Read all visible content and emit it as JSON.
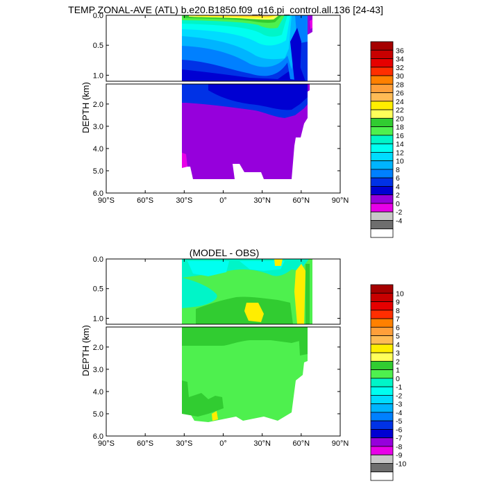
{
  "chart_data": [
    {
      "type": "heatmap",
      "panel": "top",
      "title": "TEMP ZONAL-AVE (ATL) b.e20.B1850.f09_g16.pi_control.all.136 [24-43]",
      "ylabel": "DEPTH (km)",
      "xlabel": "",
      "x_ticks": [
        "90°S",
        "60°S",
        "30°S",
        "0°",
        "30°N",
        "60°N",
        "90°N"
      ],
      "x_tick_values": [
        -90,
        -60,
        -30,
        0,
        30,
        60,
        90
      ],
      "xlim": [
        -90,
        90
      ],
      "y_ticks_upper": [
        "0.0",
        "0.5",
        "1.0"
      ],
      "y_tick_values_upper": [
        0.0,
        0.5,
        1.0
      ],
      "ylim_upper": [
        0.0,
        1.1
      ],
      "y_ticks_lower": [
        "2.0",
        "3.0",
        "4.0",
        "5.0",
        "6.0"
      ],
      "y_tick_values_lower": [
        2.0,
        3.0,
        4.0,
        5.0,
        6.0
      ],
      "ylim_lower": [
        1.1,
        6.0
      ],
      "colorbar_labels": [
        "36",
        "34",
        "32",
        "30",
        "28",
        "26",
        "24",
        "22",
        "20",
        "18",
        "16",
        "14",
        "12",
        "10",
        "8",
        "6",
        "4",
        "2",
        "0",
        "-2",
        "-4"
      ],
      "colorbar_colors": [
        "#a50000",
        "#c80000",
        "#e60000",
        "#ff2e00",
        "#ff8000",
        "#ff9f3a",
        "#ffbb55",
        "#ffee00",
        "#ffff5a",
        "#31cc31",
        "#4ef04e",
        "#00f5c8",
        "#00fff0",
        "#00dcff",
        "#00b4ff",
        "#0080ff",
        "#0032e6",
        "#0000d2",
        "#9600dc",
        "#e800e8",
        "#c8c8c8",
        "#6e6e6e",
        "#ffffff"
      ]
    },
    {
      "type": "heatmap",
      "panel": "bottom",
      "title": "(MODEL - OBS)",
      "ylabel": "DEPTH (km)",
      "xlabel": "",
      "x_ticks": [
        "90°S",
        "60°S",
        "30°S",
        "0°",
        "30°N",
        "60°N",
        "90°N"
      ],
      "x_tick_values": [
        -90,
        -60,
        -30,
        0,
        30,
        60,
        90
      ],
      "xlim": [
        -90,
        90
      ],
      "y_ticks_upper": [
        "0.0",
        "0.5",
        "1.0"
      ],
      "y_tick_values_upper": [
        0.0,
        0.5,
        1.0
      ],
      "ylim_upper": [
        0.0,
        1.1
      ],
      "y_ticks_lower": [
        "2.0",
        "3.0",
        "4.0",
        "5.0",
        "6.0"
      ],
      "y_tick_values_lower": [
        2.0,
        3.0,
        4.0,
        5.0,
        6.0
      ],
      "ylim_lower": [
        1.1,
        6.0
      ],
      "colorbar_labels": [
        "10",
        "9",
        "8",
        "7",
        "6",
        "5",
        "4",
        "3",
        "2",
        "1",
        "0",
        "-1",
        "-2",
        "-3",
        "-4",
        "-5",
        "-6",
        "-7",
        "-8",
        "-9",
        "-10"
      ],
      "colorbar_colors": [
        "#a50000",
        "#c80000",
        "#e60000",
        "#ff2e00",
        "#ff8000",
        "#ff9f3a",
        "#ffbb55",
        "#ffee00",
        "#ffff5a",
        "#31cc31",
        "#4ef04e",
        "#00f5c8",
        "#00fff0",
        "#00dcff",
        "#00b4ff",
        "#0080ff",
        "#0032e6",
        "#0000d2",
        "#9600dc",
        "#e800e8",
        "#c8c8c8",
        "#6e6e6e",
        "#ffffff"
      ]
    }
  ]
}
